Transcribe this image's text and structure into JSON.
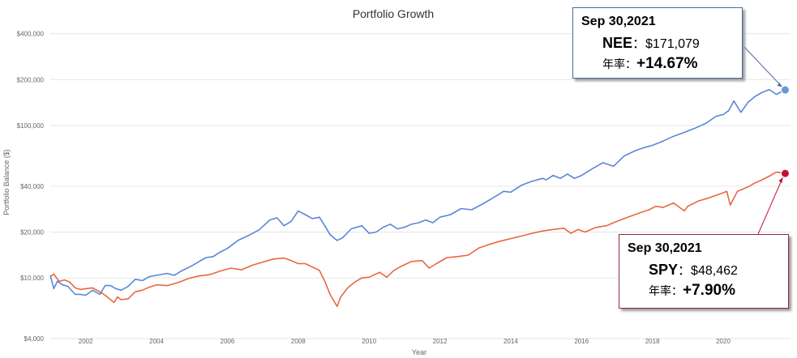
{
  "chart_data": {
    "type": "line",
    "title": "Portfolio Growth",
    "xlabel": "Year",
    "ylabel": "Portfolio Balance ($)",
    "yscale": "log",
    "xlim": [
      2001.0,
      2021.9
    ],
    "ylim": [
      4000,
      450000
    ],
    "x_ticks": [
      "2002",
      "2004",
      "2006",
      "2008",
      "2010",
      "2012",
      "2014",
      "2016",
      "2018",
      "2020"
    ],
    "y_ticks": [
      {
        "value": 400000,
        "label": "$400,000"
      },
      {
        "value": 200000,
        "label": "$200,000"
      },
      {
        "value": 100000,
        "label": "$100,000"
      },
      {
        "value": 40000,
        "label": "$40,000"
      },
      {
        "value": 20000,
        "label": "$20,000"
      },
      {
        "value": 10000,
        "label": "$10,000"
      },
      {
        "value": 4000,
        "label": "$4,000"
      }
    ],
    "grid": true,
    "series": [
      {
        "name": "NEE",
        "color": "#5b86d6",
        "x": [
          2001.0,
          2001.1,
          2001.2,
          2001.35,
          2001.5,
          2001.7,
          2001.85,
          2002.0,
          2002.2,
          2002.4,
          2002.55,
          2002.7,
          2002.85,
          2003.0,
          2003.2,
          2003.4,
          2003.6,
          2003.8,
          2004.0,
          2004.3,
          2004.5,
          2004.7,
          2005.0,
          2005.2,
          2005.4,
          2005.6,
          2005.8,
          2006.0,
          2006.3,
          2006.6,
          2006.9,
          2007.2,
          2007.4,
          2007.6,
          2007.8,
          2008.0,
          2008.2,
          2008.4,
          2008.6,
          2008.75,
          2008.9,
          2009.1,
          2009.25,
          2009.5,
          2009.8,
          2010.0,
          2010.2,
          2010.4,
          2010.6,
          2010.8,
          2011.0,
          2011.2,
          2011.4,
          2011.6,
          2011.8,
          2012.0,
          2012.3,
          2012.6,
          2012.9,
          2013.2,
          2013.5,
          2013.8,
          2014.0,
          2014.3,
          2014.6,
          2014.9,
          2015.0,
          2015.2,
          2015.4,
          2015.6,
          2015.8,
          2016.0,
          2016.3,
          2016.6,
          2016.9,
          2017.2,
          2017.5,
          2017.8,
          2018.0,
          2018.3,
          2018.6,
          2018.9,
          2019.2,
          2019.5,
          2019.8,
          2020.0,
          2020.15,
          2020.3,
          2020.5,
          2020.7,
          2020.9,
          2021.1,
          2021.3,
          2021.5,
          2021.75
        ],
        "values": [
          10400,
          8500,
          9500,
          9000,
          8800,
          7800,
          7800,
          7700,
          8300,
          7800,
          8900,
          8900,
          8500,
          8300,
          8800,
          9800,
          9600,
          10200,
          10400,
          10700,
          10400,
          11100,
          12000,
          12800,
          13600,
          13800,
          14800,
          15600,
          17600,
          19000,
          20700,
          24000,
          24800,
          22000,
          23500,
          27500,
          26000,
          24500,
          25000,
          22000,
          19200,
          17600,
          18300,
          21000,
          22000,
          19600,
          20000,
          21500,
          22500,
          21000,
          21500,
          22500,
          23000,
          24000,
          23000,
          25000,
          26000,
          28500,
          28000,
          30500,
          33500,
          37000,
          36500,
          40500,
          43000,
          45000,
          44000,
          47000,
          45000,
          48000,
          45000,
          47000,
          52000,
          57000,
          54000,
          63000,
          68000,
          72000,
          74000,
          79000,
          85000,
          90000,
          96000,
          103000,
          115000,
          118000,
          125000,
          145000,
          122000,
          142000,
          155000,
          165000,
          172000,
          160000,
          171079
        ]
      },
      {
        "name": "SPY",
        "color": "#e8683e",
        "x": [
          2001.0,
          2001.1,
          2001.25,
          2001.4,
          2001.55,
          2001.7,
          2001.85,
          2002.0,
          2002.2,
          2002.4,
          2002.55,
          2002.7,
          2002.8,
          2002.9,
          2003.0,
          2003.2,
          2003.4,
          2003.6,
          2003.8,
          2004.0,
          2004.3,
          2004.6,
          2004.9,
          2005.2,
          2005.5,
          2005.8,
          2006.1,
          2006.4,
          2006.7,
          2007.0,
          2007.3,
          2007.6,
          2007.8,
          2008.0,
          2008.2,
          2008.4,
          2008.6,
          2008.75,
          2008.9,
          2009.0,
          2009.1,
          2009.2,
          2009.4,
          2009.6,
          2009.8,
          2010.0,
          2010.3,
          2010.5,
          2010.7,
          2010.9,
          2011.2,
          2011.5,
          2011.7,
          2011.9,
          2012.2,
          2012.5,
          2012.8,
          2013.1,
          2013.4,
          2013.7,
          2014.0,
          2014.3,
          2014.6,
          2014.9,
          2015.2,
          2015.5,
          2015.7,
          2015.9,
          2016.1,
          2016.4,
          2016.7,
          2017.0,
          2017.3,
          2017.6,
          2017.9,
          2018.1,
          2018.3,
          2018.6,
          2018.9,
          2019.0,
          2019.3,
          2019.6,
          2019.9,
          2020.1,
          2020.2,
          2020.4,
          2020.7,
          2020.9,
          2021.1,
          2021.3,
          2021.5,
          2021.75
        ],
        "values": [
          10200,
          10600,
          9500,
          9700,
          9400,
          8600,
          8400,
          8500,
          8600,
          8100,
          7700,
          7200,
          6900,
          7500,
          7200,
          7300,
          8100,
          8300,
          8700,
          9000,
          8900,
          9300,
          9900,
          10300,
          10500,
          11100,
          11600,
          11300,
          12100,
          12700,
          13300,
          13500,
          13000,
          12400,
          12400,
          11800,
          11200,
          9500,
          7800,
          7100,
          6500,
          7500,
          8600,
          9400,
          10000,
          10100,
          10900,
          10100,
          11200,
          11900,
          12800,
          13000,
          11600,
          12400,
          13600,
          13800,
          14100,
          15700,
          16600,
          17400,
          18100,
          18800,
          19600,
          20300,
          20800,
          21200,
          19600,
          20800,
          20000,
          21400,
          22000,
          23500,
          25000,
          26500,
          28000,
          29500,
          29000,
          31000,
          27500,
          29500,
          32000,
          33500,
          35500,
          37000,
          30000,
          37000,
          39500,
          42000,
          44000,
          46500,
          49500,
          48462
        ]
      }
    ],
    "annotations": [
      {
        "series": "NEE",
        "date": "Sep 30,2021",
        "ticker": "NEE",
        "value": "$171,079",
        "cagr_label": "年率：",
        "cagr": "+14.67%",
        "point": {
          "x": 2021.75,
          "y": 171079
        }
      },
      {
        "series": "SPY",
        "date": "Sep 30,2021",
        "ticker": "SPY",
        "value": "$48,462",
        "cagr_label": "年率：",
        "cagr": "+7.90%",
        "point": {
          "x": 2021.75,
          "y": 48462
        }
      }
    ],
    "marker_colors": {
      "NEE": "#6a97d8",
      "SPY": "#c0103a"
    }
  }
}
